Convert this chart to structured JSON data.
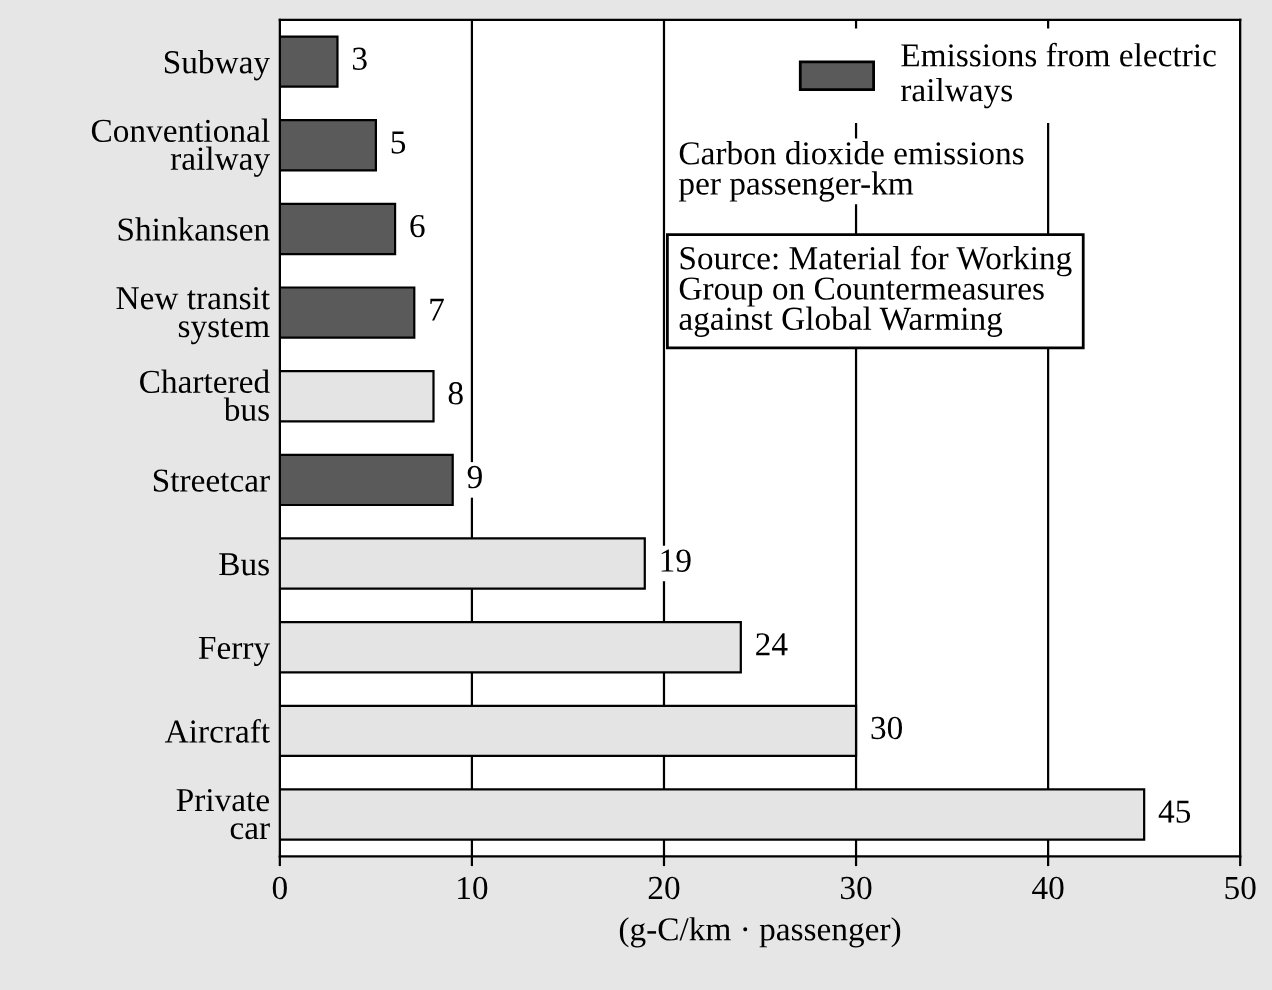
{
  "chart_data": {
    "type": "bar",
    "orientation": "horizontal",
    "xlabel": "(g-C/km · passenger)",
    "categories": [
      "Subway",
      "Conventional\nrailway",
      "Shinkansen",
      "New transit\nsystem",
      "Chartered\nbus",
      "Streetcar",
      "Bus",
      "Ferry",
      "Aircraft",
      "Private\ncar"
    ],
    "series": [
      {
        "name": "Emissions from electric\nrailways",
        "color": "#5a5a5a",
        "values": [
          3,
          5,
          6,
          7,
          null,
          9,
          null,
          null,
          null,
          null
        ]
      },
      {
        "color": "#e4e4e4",
        "values": [
          null,
          null,
          null,
          null,
          8,
          null,
          19,
          24,
          30,
          45
        ]
      }
    ],
    "xlim": [
      0,
      50
    ],
    "xticks": [
      0,
      10,
      20,
      30,
      40,
      50
    ],
    "grid": "x",
    "legend": "top right",
    "data_labels": true,
    "annotations": [
      "Carbon dioxide emissions\nper passenger-km",
      "Source: Material for Working\nGroup on Countermeasures\nagainst Global Warming"
    ]
  }
}
